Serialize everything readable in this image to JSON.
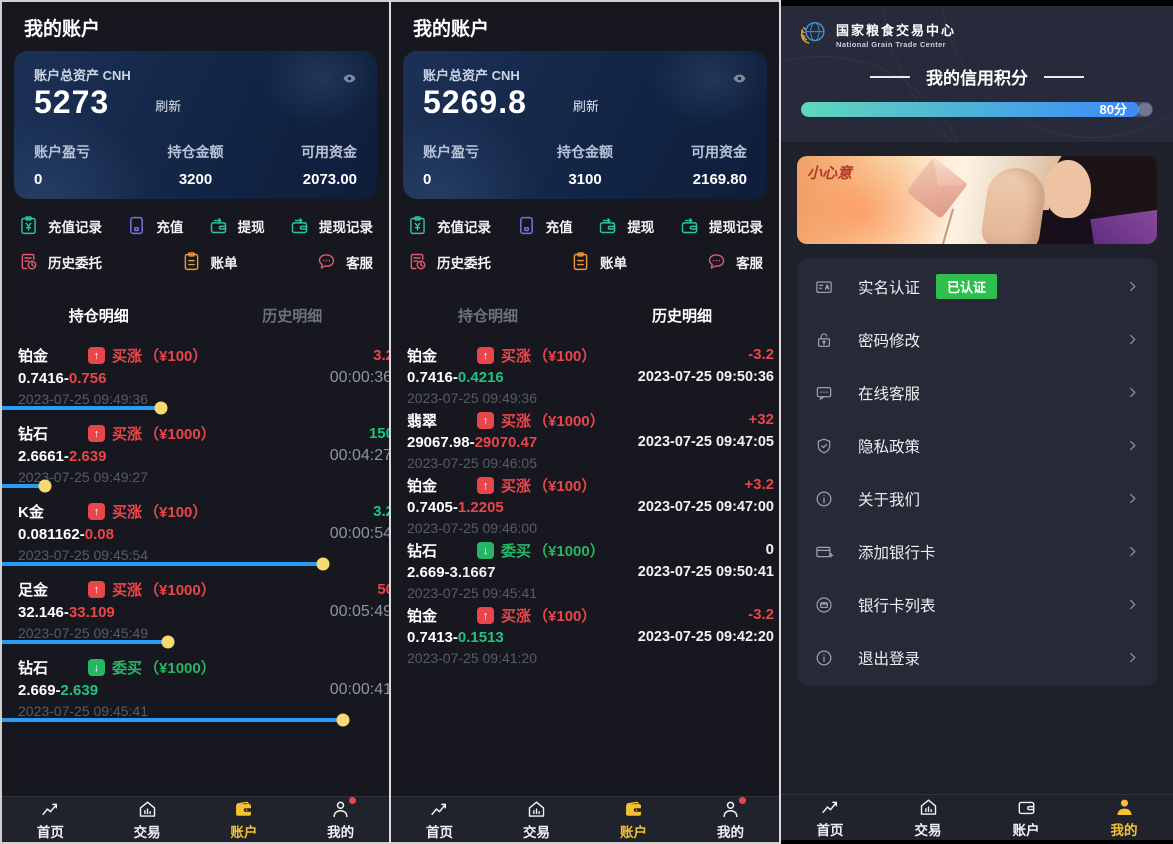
{
  "colors": {
    "accent_yellow": "#f2c230",
    "up_red": "#e8464b",
    "down_green": "#27b566",
    "price_green": "#24c17d",
    "text_white": "#eef0f3",
    "progress_blue": "#2b9af3",
    "knob_yellow": "#f7d974",
    "verified_green": "#2fbf4f",
    "credit_from": "#5fd7bb",
    "credit_to": "#3d8bf8"
  },
  "tabs": [
    "持仓明细",
    "历史明细"
  ],
  "actions": [
    {
      "label": "充值记录",
      "icon": "recharge-record",
      "color": "#2ec4a0"
    },
    {
      "label": "充值",
      "icon": "recharge",
      "color": "#7275e0"
    },
    {
      "label": "提现",
      "icon": "withdraw",
      "color": "#2ec4a0"
    },
    {
      "label": "提现记录",
      "icon": "withdraw-record",
      "color": "#2ec4a0"
    },
    {
      "label": "历史委托",
      "icon": "history-orders",
      "color": "#df5a74"
    },
    {
      "label": "账单",
      "icon": "bill",
      "color": "#e9983d"
    },
    {
      "label": "客服",
      "icon": "service",
      "color": "#df5a74"
    }
  ],
  "nav_items": [
    {
      "label": "首页",
      "icon": "home"
    },
    {
      "label": "交易",
      "icon": "trade"
    },
    {
      "label": "账户",
      "icon": "wallet"
    },
    {
      "label": "我的",
      "icon": "profile"
    }
  ],
  "screen1": {
    "title": "我的账户",
    "card": {
      "label": "账户总资产 CNH",
      "total": "5273",
      "refresh": "刷新",
      "stats": [
        {
          "label": "账户盈亏",
          "value": "0"
        },
        {
          "label": "持仓金额",
          "value": "3200"
        },
        {
          "label": "可用资金",
          "value": "2073.00"
        }
      ]
    },
    "active_tab": 0,
    "rows": [
      {
        "name": "铂金",
        "side": "up",
        "dir": "买涨",
        "amount": "（¥100）",
        "open": "0.7416",
        "close": "0.756",
        "close_color": "red",
        "date": "2023-07-25 09:49:36",
        "value": "3.2",
        "value_color": "red",
        "timer": "00:00:36",
        "progress": 41
      },
      {
        "name": "钻石",
        "side": "up",
        "dir": "买涨",
        "amount": "（¥1000）",
        "open": "2.6661",
        "close": "2.639",
        "close_color": "red",
        "date": "2023-07-25 09:49:27",
        "value": "150",
        "value_color": "green",
        "timer": "00:04:27",
        "progress": 11
      },
      {
        "name": "K金",
        "side": "up",
        "dir": "买涨",
        "amount": "（¥100）",
        "open": "0.081162",
        "close": "0.08",
        "close_color": "red",
        "date": "2023-07-25 09:45:54",
        "value": "3.2",
        "value_color": "green",
        "timer": "00:00:54",
        "progress": 83
      },
      {
        "name": "足金",
        "side": "up",
        "dir": "买涨",
        "amount": "（¥1000）",
        "open": "32.146",
        "close": "33.109",
        "close_color": "red",
        "date": "2023-07-25 09:45:49",
        "value": "50",
        "value_color": "red",
        "timer": "00:05:49",
        "progress": 43
      },
      {
        "name": "钻石",
        "side": "down",
        "dir": "委买",
        "amount": "（¥1000）",
        "open": "2.669",
        "close": "2.639",
        "close_color": "green",
        "date": "2023-07-25 09:45:41",
        "value": "",
        "value_color": "white",
        "timer": "00:00:41",
        "progress": 88
      }
    ],
    "nav_active": 2,
    "nav_dot": true
  },
  "screen2": {
    "title": "我的账户",
    "card": {
      "label": "账户总资产 CNH",
      "total": "5269.8",
      "refresh": "刷新",
      "stats": [
        {
          "label": "账户盈亏",
          "value": "0"
        },
        {
          "label": "持仓金额",
          "value": "3100"
        },
        {
          "label": "可用资金",
          "value": "2169.80"
        }
      ]
    },
    "active_tab": 1,
    "rows": [
      {
        "name": "铂金",
        "side": "up",
        "dir": "买涨",
        "amount": "（¥100）",
        "open": "0.7416",
        "close": "0.4216",
        "close_color": "green",
        "date": "2023-07-25 09:49:36",
        "value": "-3.2",
        "value_color": "red",
        "close_date": "2023-07-25 09:50:36"
      },
      {
        "name": "翡翠",
        "side": "up",
        "dir": "买涨",
        "amount": "（¥1000）",
        "open": "29067.98",
        "close": "29070.47",
        "close_color": "red",
        "date": "2023-07-25 09:46:05",
        "value": "+32",
        "value_color": "red",
        "close_date": "2023-07-25 09:47:05"
      },
      {
        "name": "铂金",
        "side": "up",
        "dir": "买涨",
        "amount": "（¥100）",
        "open": "0.7405",
        "close": "1.2205",
        "close_color": "red",
        "date": "2023-07-25 09:46:00",
        "value": "+3.2",
        "value_color": "red",
        "close_date": "2023-07-25 09:47:00"
      },
      {
        "name": "钻石",
        "side": "down",
        "dir": "委买",
        "amount": "（¥1000）",
        "open": "2.669",
        "close": "3.1667",
        "close_color": "white",
        "date": "2023-07-25 09:45:41",
        "value": "0",
        "value_color": "white",
        "close_date": "2023-07-25 09:50:41"
      },
      {
        "name": "铂金",
        "side": "up",
        "dir": "买涨",
        "amount": "（¥100）",
        "open": "0.7413",
        "close": "0.1513",
        "close_color": "green",
        "date": "2023-07-25 09:41:20",
        "value": "-3.2",
        "value_color": "red",
        "close_date": "2023-07-25 09:42:20"
      }
    ],
    "nav_active": 2,
    "nav_dot": true
  },
  "screen3": {
    "brand": {
      "name_zh": "国家粮食交易中心",
      "name_en": "National Grain Trade Center"
    },
    "credit": {
      "title": "我的信用积分",
      "score": "80分",
      "percent": 96
    },
    "banner": {
      "caption": "小心意"
    },
    "menu": [
      {
        "label": "实名认证",
        "icon": "id-card",
        "badge": "已认证"
      },
      {
        "label": "密码修改",
        "icon": "lock"
      },
      {
        "label": "在线客服",
        "icon": "chat"
      },
      {
        "label": "隐私政策",
        "icon": "shield"
      },
      {
        "label": "关于我们",
        "icon": "info"
      },
      {
        "label": "添加银行卡",
        "icon": "card-add"
      },
      {
        "label": "银行卡列表",
        "icon": "card-list"
      },
      {
        "label": "退出登录",
        "icon": "logout"
      }
    ],
    "nav_active": 3,
    "nav_dot": false
  }
}
